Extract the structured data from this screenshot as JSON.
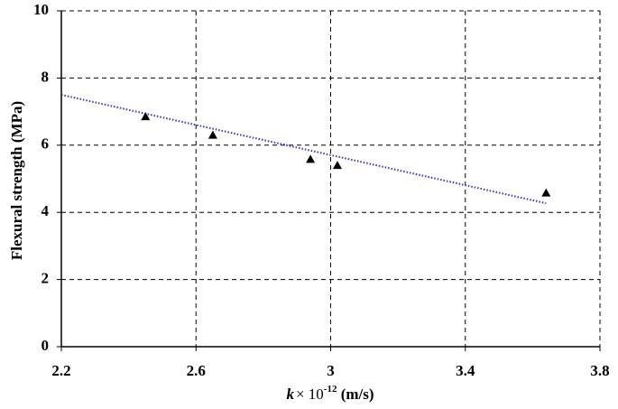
{
  "chart_data": {
    "type": "scatter",
    "xlabel": [
      "k",
      "× 10",
      "-12",
      " (m/s)"
    ],
    "ylabel": "Flexural strength (MPa)",
    "x": [
      2.45,
      2.65,
      2.94,
      3.02,
      3.64
    ],
    "values": [
      6.85,
      6.3,
      5.58,
      5.4,
      4.58
    ],
    "color": "#000000",
    "trendline": {
      "x": [
        2.2,
        3.64
      ],
      "values": [
        7.5,
        4.27
      ],
      "color": "#3333bb"
    },
    "xlim": [
      2.2,
      3.8
    ],
    "xticks": [
      2.2,
      2.6,
      3,
      3.4,
      3.8
    ],
    "ylim": [
      0,
      10
    ],
    "yticks": [
      0,
      2,
      4,
      6,
      8,
      10
    ],
    "grid": true
  }
}
